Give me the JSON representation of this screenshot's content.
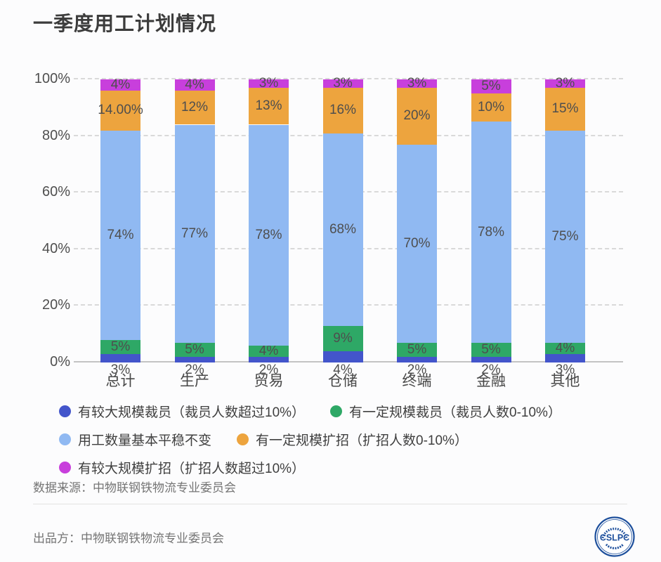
{
  "title": "一季度用工计划情况",
  "chart_data": {
    "type": "stacked_bar",
    "title": "一季度用工计划情况",
    "unit": "percent",
    "categories": [
      "总计",
      "生产",
      "贸易",
      "仓储",
      "终端",
      "金融",
      "其他"
    ],
    "series": [
      {
        "name": "有较大规模裁员（裁员人数超过10%）",
        "color": "#4355cb",
        "values": [
          3,
          2,
          2,
          4,
          2,
          2,
          3
        ],
        "labels": [
          "3%",
          "2%",
          "2%",
          "4%",
          "2%",
          "2%",
          "3%"
        ]
      },
      {
        "name": "有一定规模裁员（裁员人数0-10%）",
        "color": "#2ea866",
        "values": [
          5,
          5,
          4,
          9,
          5,
          5,
          4
        ],
        "labels": [
          "5%",
          "5%",
          "4%",
          "9%",
          "5%",
          "5%",
          "4%"
        ]
      },
      {
        "name": "用工数量基本平稳不变",
        "color": "#90b9f2",
        "values": [
          74,
          77,
          78,
          68,
          70,
          78,
          75
        ],
        "labels": [
          "74%",
          "77%",
          "78%",
          "68%",
          "70%",
          "78%",
          "75%"
        ]
      },
      {
        "name": "有一定规模扩招（扩招人数0-10%）",
        "color": "#eda43e",
        "values": [
          14,
          12,
          13,
          16,
          20,
          10,
          15
        ],
        "labels": [
          "14.00%",
          "12%",
          "13%",
          "16%",
          "20%",
          "10%",
          "15%"
        ]
      },
      {
        "name": "有较大规模扩招（扩招人数超过10%）",
        "color": "#c83fdc",
        "values": [
          4,
          4,
          3,
          3,
          3,
          5,
          3
        ],
        "labels": [
          "4%",
          "4%",
          "3%",
          "3%",
          "3%",
          "5%",
          "3%"
        ]
      }
    ],
    "y_axis": {
      "tick_labels": [
        "0%",
        "20%",
        "40%",
        "60%",
        "80%",
        "100%"
      ],
      "tick_values": [
        0,
        20,
        40,
        60,
        80,
        100
      ],
      "range": [
        0,
        100
      ]
    },
    "grid": {
      "horizontal": true,
      "style": "dashed"
    },
    "legend_position": "bottom"
  },
  "source_line": "数据来源：中物联钢铁物流专业委员会",
  "footer": {
    "producer_line": "出品方：中物联钢铁物流专业委员会",
    "logo_text": "CSLPC"
  },
  "colors": {
    "title_text": "#3c3c3c",
    "axis_text": "#4f4f4f",
    "label_text": "#4e4e4e",
    "legend_text": "#3f3f3f",
    "footer_text": "#757575",
    "logo_navy": "#1d4f9c",
    "background": "#fcfcfd"
  }
}
